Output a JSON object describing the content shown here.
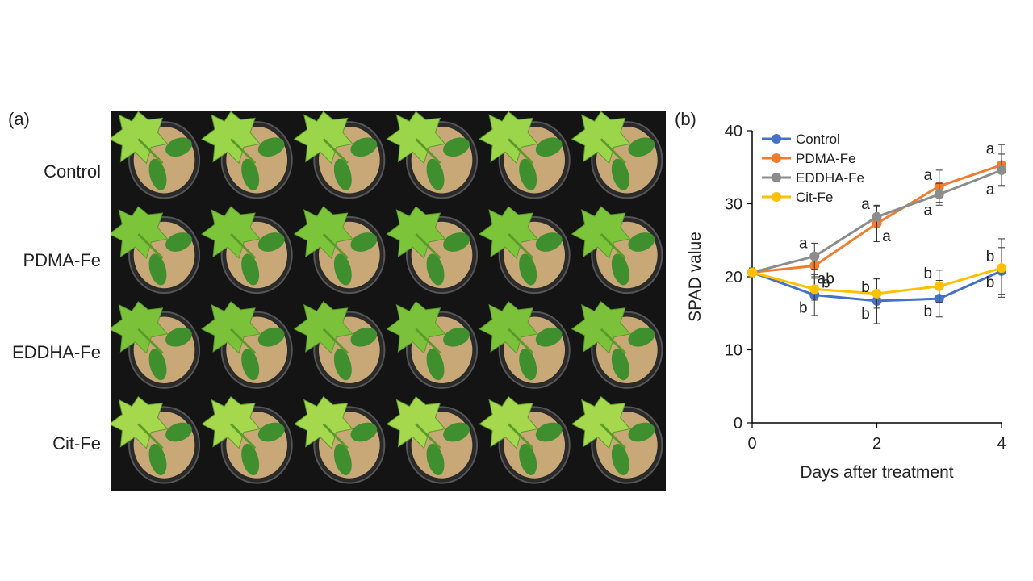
{
  "panels": {
    "a_label": "(a)",
    "b_label": "(b)"
  },
  "photo": {
    "rows": [
      "Control",
      "PDMA-Fe",
      "EDDHA-Fe",
      "Cit-Fe"
    ],
    "plants_per_row": 6,
    "leaf_colors": [
      "#9bd64a",
      "#7cc43a",
      "#7bc23a",
      "#a6d84e"
    ]
  },
  "chart_data": {
    "type": "line",
    "xlabel": "Days after treatment",
    "ylabel": "SPAD value",
    "xlim": [
      0,
      4
    ],
    "ylim": [
      0,
      40
    ],
    "xticks": [
      0,
      2,
      4
    ],
    "yticks": [
      0,
      10,
      20,
      30,
      40
    ],
    "x": [
      0,
      1,
      2,
      3,
      4
    ],
    "legend_position": "top-left",
    "series": [
      {
        "name": "Control",
        "color": "#4472c4",
        "values": [
          20.6,
          17.5,
          16.7,
          17.0,
          20.8
        ],
        "errors": [
          0.6,
          2.8,
          3.1,
          2.5,
          3.2
        ],
        "letters": [
          "",
          "b",
          "b",
          "b",
          "b"
        ]
      },
      {
        "name": "PDMA-Fe",
        "color": "#ed7d31",
        "values": [
          20.6,
          21.5,
          27.3,
          32.4,
          35.3
        ],
        "errors": [
          0.6,
          1.5,
          2.5,
          2.2,
          2.8
        ],
        "letters": [
          "",
          "ab",
          "a",
          "a",
          "a"
        ]
      },
      {
        "name": "EDDHA-Fe",
        "color": "#8c8c8c",
        "values": [
          20.6,
          22.8,
          28.2,
          31.3,
          34.6
        ],
        "errors": [
          0.6,
          1.8,
          1.5,
          1.5,
          2.2
        ],
        "letters": [
          "",
          "a",
          "a",
          "a",
          "a"
        ]
      },
      {
        "name": "Cit-Fe",
        "color": "#ffc000",
        "values": [
          20.6,
          18.3,
          17.7,
          18.7,
          21.2
        ],
        "errors": [
          0.6,
          1.5,
          2.0,
          2.2,
          4.0
        ],
        "letters": [
          "",
          "b",
          "b",
          "b",
          "b"
        ]
      }
    ]
  }
}
